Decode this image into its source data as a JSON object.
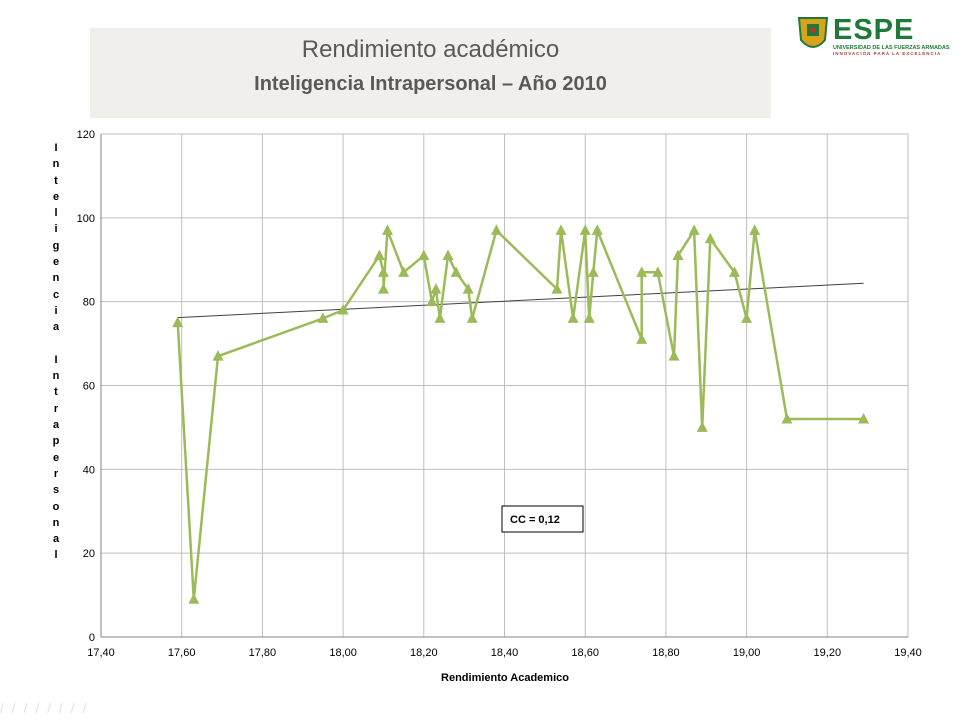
{
  "header": {
    "title": "Rendimiento académico",
    "subtitle": "Inteligencia  Intrapersonal – Año 2010"
  },
  "logo": {
    "name": "ESPE",
    "line1": "UNIVERSIDAD DE LAS FUERZAS ARMADAS",
    "line2": "INNOVACIÓN PARA LA EXCELENCIA",
    "colors": {
      "green": "#1e7a38",
      "red": "#b23a2a",
      "gold": "#d9a21b"
    }
  },
  "chart_data": {
    "type": "line",
    "title": "",
    "xlabel": "Rendimiento Academico",
    "ylabel": "Inteligencia Intrapersonal",
    "xlim": [
      17.4,
      19.4
    ],
    "ylim": [
      0,
      120
    ],
    "x_ticks": [
      "17,40",
      "17,60",
      "17,80",
      "18,00",
      "18,20",
      "18,40",
      "18,60",
      "18,80",
      "19,00",
      "19,20",
      "19,40"
    ],
    "y_ticks": [
      "0",
      "20",
      "40",
      "60",
      "80",
      "100",
      "120"
    ],
    "grid": true,
    "series": [
      {
        "color": "#9bbb59",
        "marker": "triangle",
        "points": [
          [
            17.59,
            75
          ],
          [
            17.63,
            9
          ],
          [
            17.69,
            67
          ],
          [
            17.95,
            76
          ],
          [
            18.0,
            78
          ],
          [
            18.09,
            91
          ],
          [
            18.1,
            87
          ],
          [
            18.1,
            83
          ],
          [
            18.11,
            97
          ],
          [
            18.15,
            87
          ],
          [
            18.2,
            91
          ],
          [
            18.22,
            80
          ],
          [
            18.23,
            83
          ],
          [
            18.24,
            76
          ],
          [
            18.26,
            91
          ],
          [
            18.28,
            87
          ],
          [
            18.31,
            83
          ],
          [
            18.32,
            76
          ],
          [
            18.38,
            97
          ],
          [
            18.53,
            83
          ],
          [
            18.54,
            97
          ],
          [
            18.57,
            76
          ],
          [
            18.6,
            97
          ],
          [
            18.61,
            76
          ],
          [
            18.62,
            87
          ],
          [
            18.63,
            97
          ],
          [
            18.74,
            71
          ],
          [
            18.74,
            87
          ],
          [
            18.78,
            87
          ],
          [
            18.82,
            67
          ],
          [
            18.83,
            91
          ],
          [
            18.87,
            97
          ],
          [
            18.89,
            50
          ],
          [
            18.91,
            95
          ],
          [
            18.97,
            87
          ],
          [
            19.0,
            76
          ],
          [
            19.02,
            97
          ],
          [
            19.1,
            52
          ],
          [
            19.29,
            52
          ]
        ]
      }
    ],
    "trendline": {
      "color": "#404040",
      "from": [
        17.59,
        76.2
      ],
      "to": [
        19.29,
        84.4
      ]
    },
    "annotation": "CC = 0,12"
  }
}
